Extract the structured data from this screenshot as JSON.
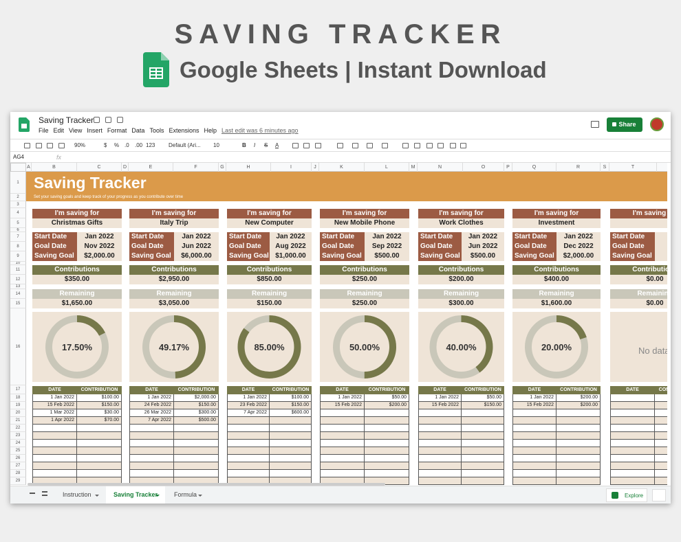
{
  "header": {
    "title": "SAVING TRACKER",
    "subtitle": "Google Sheets | Instant Download"
  },
  "app": {
    "doc_title": "Saving Tracker",
    "menu": [
      "File",
      "Edit",
      "View",
      "Insert",
      "Format",
      "Data",
      "Tools",
      "Extensions",
      "Help"
    ],
    "last_edit": "Last edit was 6 minutes ago",
    "share": "Share",
    "cell_ref": "AG4",
    "fx": "fx",
    "toolbar": {
      "zoom": "90%",
      "currency": "$",
      "percent": "%",
      "dec_less": ".0",
      "dec_more": ".00",
      "format": "123",
      "font": "Default (Ari...",
      "size": "10",
      "bold": "B",
      "italic": "I",
      "strike": "S",
      "color": "A"
    }
  },
  "sheet": {
    "columns": [
      "A",
      "B",
      "C",
      "D",
      "E",
      "F",
      "G",
      "H",
      "I",
      "J",
      "K",
      "L",
      "M",
      "N",
      "O",
      "P",
      "Q",
      "R",
      "S",
      "T"
    ],
    "row_numbers": [
      1,
      2,
      3,
      4,
      5,
      6,
      7,
      8,
      9,
      10,
      11,
      12,
      13,
      14,
      15,
      16,
      17,
      18,
      19,
      20,
      21,
      22,
      23,
      24,
      25,
      26,
      27,
      28,
      29
    ],
    "banner_title": "Saving Tracker",
    "banner_subtitle": "Set your saving goals and keep track of your progress as you contribute over time",
    "labels": {
      "saving_for": "I'm saving for",
      "start_date": "Start Date",
      "goal_date": "Goal Date",
      "saving_goal": "Saving Goal",
      "contributions": "Contributions",
      "remaining": "Remaining",
      "date": "DATE",
      "contribution": "CONTRIBUTION"
    },
    "cards": [
      {
        "item": "Christmas Gifts",
        "start_date": "Jan 2022",
        "goal_date": "Nov 2022",
        "saving_goal": "$2,000.00",
        "contributions": "$350.00",
        "remaining": "$1,650.00",
        "progress": 17.5,
        "progress_label": "17.50%",
        "rows": [
          {
            "date": "1 Jan 2022",
            "amount": "$100.00"
          },
          {
            "date": "15 Feb 2022",
            "amount": "$150.00"
          },
          {
            "date": "1 Mar 2022",
            "amount": "$30.00"
          },
          {
            "date": "1 Apr 2022",
            "amount": "$70.00"
          }
        ]
      },
      {
        "item": "Italy Trip",
        "start_date": "Jan 2022",
        "goal_date": "Jun 2022",
        "saving_goal": "$6,000.00",
        "contributions": "$2,950.00",
        "remaining": "$3,050.00",
        "progress": 49.17,
        "progress_label": "49.17%",
        "rows": [
          {
            "date": "1 Jan 2022",
            "amount": "$2,000.00"
          },
          {
            "date": "24 Feb 2022",
            "amount": "$150.00"
          },
          {
            "date": "26 Mar 2022",
            "amount": "$300.00"
          },
          {
            "date": "7 Apr 2022",
            "amount": "$500.00"
          }
        ]
      },
      {
        "item": "New Computer",
        "start_date": "Jan 2022",
        "goal_date": "Aug 2022",
        "saving_goal": "$1,000.00",
        "contributions": "$850.00",
        "remaining": "$150.00",
        "progress": 85,
        "progress_label": "85.00%",
        "rows": [
          {
            "date": "1 Jan 2022",
            "amount": "$100.00"
          },
          {
            "date": "23 Feb 2022",
            "amount": "$150.00"
          },
          {
            "date": "7 Apr 2022",
            "amount": "$600.00"
          }
        ]
      },
      {
        "item": "New Mobile Phone",
        "start_date": "Jan 2022",
        "goal_date": "Sep 2022",
        "saving_goal": "$500.00",
        "contributions": "$250.00",
        "remaining": "$250.00",
        "progress": 50,
        "progress_label": "50.00%",
        "rows": [
          {
            "date": "1 Jan 2022",
            "amount": "$50.00"
          },
          {
            "date": "15 Feb 2022",
            "amount": "$200.00"
          }
        ]
      },
      {
        "item": "Work Clothes",
        "start_date": "Jan 2022",
        "goal_date": "Jun 2022",
        "saving_goal": "$500.00",
        "contributions": "$200.00",
        "remaining": "$300.00",
        "progress": 40,
        "progress_label": "40.00%",
        "rows": [
          {
            "date": "1 Jan 2022",
            "amount": "$50.00"
          },
          {
            "date": "15 Feb 2022",
            "amount": "$150.00"
          }
        ]
      },
      {
        "item": "Investment",
        "start_date": "Jan 2022",
        "goal_date": "Dec 2022",
        "saving_goal": "$2,000.00",
        "contributions": "$400.00",
        "remaining": "$1,600.00",
        "progress": 20,
        "progress_label": "20.00%",
        "rows": [
          {
            "date": "1 Jan 2022",
            "amount": "$200.00"
          },
          {
            "date": "15 Feb 2022",
            "amount": "$200.00"
          }
        ]
      },
      {
        "contributions": "$0.00",
        "remaining": "$0.00",
        "no_data": "No data",
        "rows": []
      }
    ]
  },
  "tabs": {
    "items": [
      "Instruction",
      "Saving Tracker",
      "Formula"
    ],
    "active": 1,
    "explore": "Explore"
  }
}
